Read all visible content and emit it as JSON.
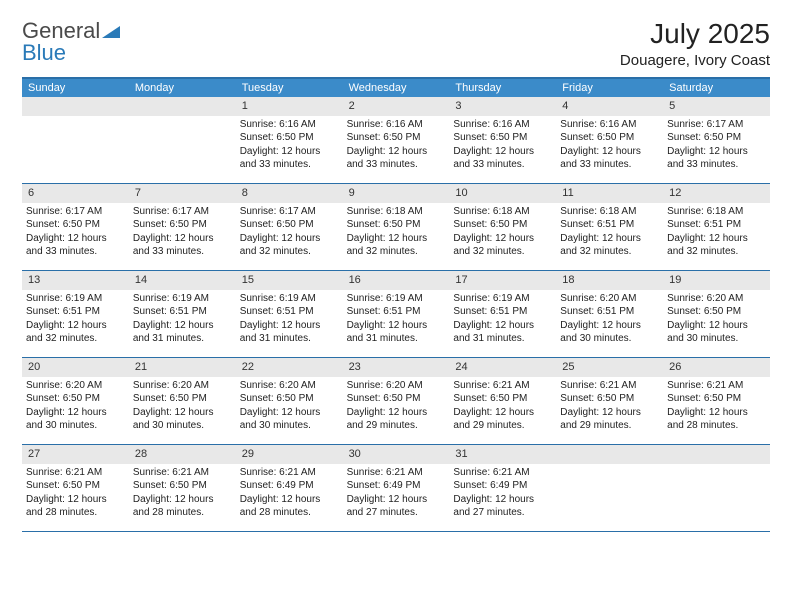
{
  "logo": {
    "part1": "General",
    "part2": "Blue"
  },
  "title": "July 2025",
  "location": "Douagere, Ivory Coast",
  "colors": {
    "header_bg": "#3b8bc9",
    "header_text": "#ffffff",
    "border": "#2a6fa8",
    "daynum_bg": "#e8e8e8",
    "logo_gray": "#4a4a4a",
    "logo_blue": "#2a7ab8",
    "text": "#222222",
    "background": "#ffffff"
  },
  "layout": {
    "columns": 7,
    "rows": 5,
    "cell_fontsize_pt": 7.5,
    "title_fontsize_pt": 21,
    "location_fontsize_pt": 11
  },
  "weekdays": [
    "Sunday",
    "Monday",
    "Tuesday",
    "Wednesday",
    "Thursday",
    "Friday",
    "Saturday"
  ],
  "weeks": [
    [
      {
        "day": "",
        "sunrise": "",
        "sunset": "",
        "daylight": ""
      },
      {
        "day": "",
        "sunrise": "",
        "sunset": "",
        "daylight": ""
      },
      {
        "day": "1",
        "sunrise": "6:16 AM",
        "sunset": "6:50 PM",
        "daylight": "12 hours and 33 minutes."
      },
      {
        "day": "2",
        "sunrise": "6:16 AM",
        "sunset": "6:50 PM",
        "daylight": "12 hours and 33 minutes."
      },
      {
        "day": "3",
        "sunrise": "6:16 AM",
        "sunset": "6:50 PM",
        "daylight": "12 hours and 33 minutes."
      },
      {
        "day": "4",
        "sunrise": "6:16 AM",
        "sunset": "6:50 PM",
        "daylight": "12 hours and 33 minutes."
      },
      {
        "day": "5",
        "sunrise": "6:17 AM",
        "sunset": "6:50 PM",
        "daylight": "12 hours and 33 minutes."
      }
    ],
    [
      {
        "day": "6",
        "sunrise": "6:17 AM",
        "sunset": "6:50 PM",
        "daylight": "12 hours and 33 minutes."
      },
      {
        "day": "7",
        "sunrise": "6:17 AM",
        "sunset": "6:50 PM",
        "daylight": "12 hours and 33 minutes."
      },
      {
        "day": "8",
        "sunrise": "6:17 AM",
        "sunset": "6:50 PM",
        "daylight": "12 hours and 32 minutes."
      },
      {
        "day": "9",
        "sunrise": "6:18 AM",
        "sunset": "6:50 PM",
        "daylight": "12 hours and 32 minutes."
      },
      {
        "day": "10",
        "sunrise": "6:18 AM",
        "sunset": "6:50 PM",
        "daylight": "12 hours and 32 minutes."
      },
      {
        "day": "11",
        "sunrise": "6:18 AM",
        "sunset": "6:51 PM",
        "daylight": "12 hours and 32 minutes."
      },
      {
        "day": "12",
        "sunrise": "6:18 AM",
        "sunset": "6:51 PM",
        "daylight": "12 hours and 32 minutes."
      }
    ],
    [
      {
        "day": "13",
        "sunrise": "6:19 AM",
        "sunset": "6:51 PM",
        "daylight": "12 hours and 32 minutes."
      },
      {
        "day": "14",
        "sunrise": "6:19 AM",
        "sunset": "6:51 PM",
        "daylight": "12 hours and 31 minutes."
      },
      {
        "day": "15",
        "sunrise": "6:19 AM",
        "sunset": "6:51 PM",
        "daylight": "12 hours and 31 minutes."
      },
      {
        "day": "16",
        "sunrise": "6:19 AM",
        "sunset": "6:51 PM",
        "daylight": "12 hours and 31 minutes."
      },
      {
        "day": "17",
        "sunrise": "6:19 AM",
        "sunset": "6:51 PM",
        "daylight": "12 hours and 31 minutes."
      },
      {
        "day": "18",
        "sunrise": "6:20 AM",
        "sunset": "6:51 PM",
        "daylight": "12 hours and 30 minutes."
      },
      {
        "day": "19",
        "sunrise": "6:20 AM",
        "sunset": "6:50 PM",
        "daylight": "12 hours and 30 minutes."
      }
    ],
    [
      {
        "day": "20",
        "sunrise": "6:20 AM",
        "sunset": "6:50 PM",
        "daylight": "12 hours and 30 minutes."
      },
      {
        "day": "21",
        "sunrise": "6:20 AM",
        "sunset": "6:50 PM",
        "daylight": "12 hours and 30 minutes."
      },
      {
        "day": "22",
        "sunrise": "6:20 AM",
        "sunset": "6:50 PM",
        "daylight": "12 hours and 30 minutes."
      },
      {
        "day": "23",
        "sunrise": "6:20 AM",
        "sunset": "6:50 PM",
        "daylight": "12 hours and 29 minutes."
      },
      {
        "day": "24",
        "sunrise": "6:21 AM",
        "sunset": "6:50 PM",
        "daylight": "12 hours and 29 minutes."
      },
      {
        "day": "25",
        "sunrise": "6:21 AM",
        "sunset": "6:50 PM",
        "daylight": "12 hours and 29 minutes."
      },
      {
        "day": "26",
        "sunrise": "6:21 AM",
        "sunset": "6:50 PM",
        "daylight": "12 hours and 28 minutes."
      }
    ],
    [
      {
        "day": "27",
        "sunrise": "6:21 AM",
        "sunset": "6:50 PM",
        "daylight": "12 hours and 28 minutes."
      },
      {
        "day": "28",
        "sunrise": "6:21 AM",
        "sunset": "6:50 PM",
        "daylight": "12 hours and 28 minutes."
      },
      {
        "day": "29",
        "sunrise": "6:21 AM",
        "sunset": "6:49 PM",
        "daylight": "12 hours and 28 minutes."
      },
      {
        "day": "30",
        "sunrise": "6:21 AM",
        "sunset": "6:49 PM",
        "daylight": "12 hours and 27 minutes."
      },
      {
        "day": "31",
        "sunrise": "6:21 AM",
        "sunset": "6:49 PM",
        "daylight": "12 hours and 27 minutes."
      },
      {
        "day": "",
        "sunrise": "",
        "sunset": "",
        "daylight": ""
      },
      {
        "day": "",
        "sunrise": "",
        "sunset": "",
        "daylight": ""
      }
    ]
  ],
  "labels": {
    "sunrise_prefix": "Sunrise: ",
    "sunset_prefix": "Sunset: ",
    "daylight_prefix": "Daylight: "
  }
}
